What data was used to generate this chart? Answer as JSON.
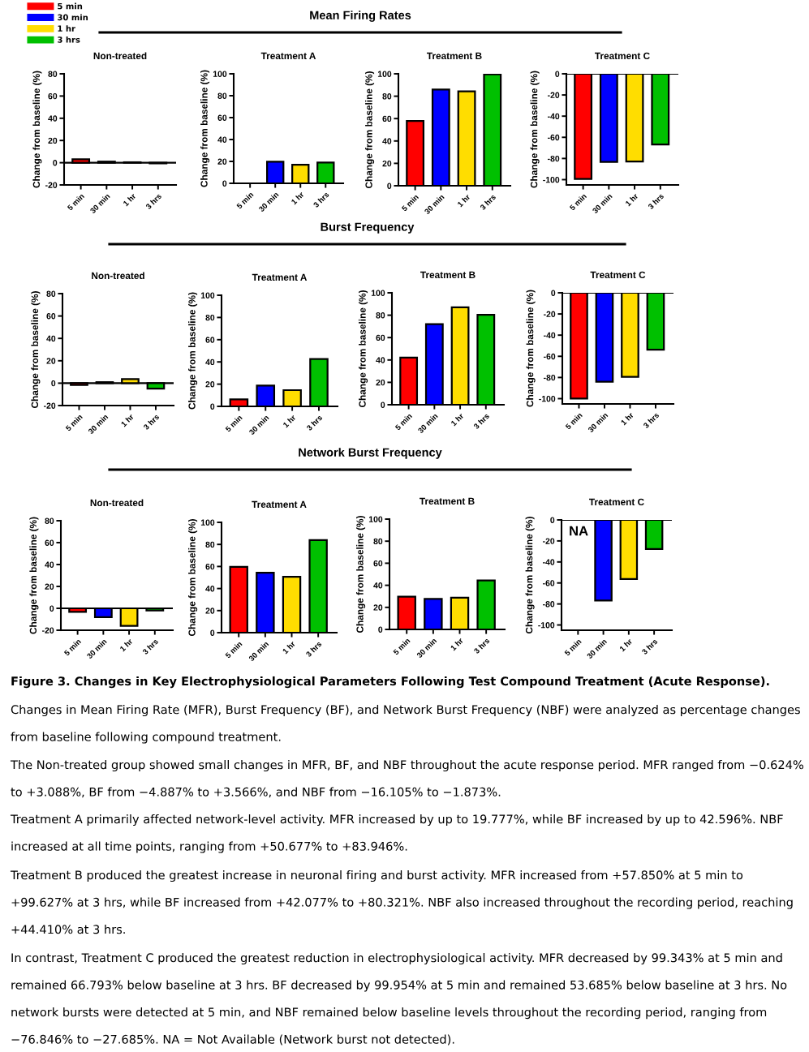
{
  "chart_data": [
    {
      "type": "other",
      "title": "Mean Firing Rates"
    },
    {
      "type": "bar",
      "title": "Non-treated",
      "ylabel": "Change from baseline (%)",
      "categories": [
        "5 min",
        "30 min",
        "1 hr",
        "3 hrs"
      ],
      "series": [
        {
          "name": "5 min",
          "color": "#ff0000",
          "values": [
            3.1,
            null,
            null,
            null
          ]
        },
        {
          "name": "30 min",
          "color": "#0000ff",
          "values": [
            null,
            1.0,
            null,
            null
          ]
        },
        {
          "name": "1 hr",
          "color": "#ffdd00",
          "values": [
            null,
            null,
            0.4,
            null
          ]
        },
        {
          "name": "3 hrs",
          "color": "#00c000",
          "values": [
            null,
            null,
            null,
            -0.6
          ]
        }
      ],
      "ylim": [
        -20,
        80
      ],
      "yticks": [
        -20,
        0,
        20,
        40,
        60,
        80
      ],
      "ref_lines": [
        {
          "axis": "y",
          "value": 0,
          "color": "#000000"
        }
      ],
      "legend": "top left"
    },
    {
      "type": "bar",
      "title": "Treatment A",
      "ylabel": "Change from baseline (%)",
      "categories": [
        "5 min",
        "30 min",
        "1 hr",
        "3 hrs"
      ],
      "colors": [
        "#ff0000",
        "#0000ff",
        "#ffdd00",
        "#00c000"
      ],
      "values": [
        null,
        19.8,
        17.0,
        19.0
      ],
      "ylim": [
        0,
        100
      ],
      "yticks": [
        0,
        20,
        40,
        60,
        80,
        100
      ]
    },
    {
      "type": "bar",
      "title": "Treatment B",
      "ylabel": "Change from baseline (%)",
      "categories": [
        "5 min",
        "30 min",
        "1 hr",
        "3 hrs"
      ],
      "colors": [
        "#ff0000",
        "#0000ff",
        "#ffdd00",
        "#00c000"
      ],
      "values": [
        57.9,
        86.0,
        84.3,
        99.6
      ],
      "ylim": [
        0,
        100
      ],
      "yticks": [
        0,
        20,
        40,
        60,
        80,
        100
      ]
    },
    {
      "type": "bar",
      "title": "Treatment C",
      "ylabel": "Change from baseline (%)",
      "categories": [
        "5 min",
        "30 min",
        "1 hr",
        "3 hrs"
      ],
      "colors": [
        "#ff0000",
        "#0000ff",
        "#ffdd00",
        "#00c000"
      ],
      "values": [
        -99.3,
        -83.2,
        -82.9,
        -66.8
      ],
      "ylim": [
        -105,
        0
      ],
      "yticks": [
        -100,
        -80,
        -60,
        -40,
        -20,
        0
      ],
      "ref_lines": [
        {
          "axis": "y",
          "value": 0,
          "color": "#000000"
        }
      ]
    },
    {
      "type": "other",
      "title": "Burst Frequency"
    },
    {
      "type": "bar",
      "title": "Non-treated",
      "ylabel": "Change from baseline (%)",
      "categories": [
        "5 min",
        "30 min",
        "1 hr",
        "3 hrs"
      ],
      "colors": [
        "#ff0000",
        "#0000ff",
        "#ffdd00",
        "#00c000"
      ],
      "values": [
        -1.7,
        0.9,
        3.6,
        -4.9
      ],
      "ylim": [
        -20,
        80
      ],
      "yticks": [
        -20,
        0,
        20,
        40,
        60,
        80
      ],
      "ref_lines": [
        {
          "axis": "y",
          "value": 0,
          "color": "#000000"
        }
      ]
    },
    {
      "type": "bar",
      "title": "Treatment A",
      "ylabel": "Change from baseline (%)",
      "categories": [
        "5 min",
        "30 min",
        "1 hr",
        "3 hrs"
      ],
      "colors": [
        "#ff0000",
        "#0000ff",
        "#ffdd00",
        "#00c000"
      ],
      "values": [
        6.3,
        18.7,
        14.6,
        42.6
      ],
      "ylim": [
        0,
        100
      ],
      "yticks": [
        0,
        20,
        40,
        60,
        80,
        100
      ]
    },
    {
      "type": "bar",
      "title": "Treatment B",
      "ylabel": "Change from baseline (%)",
      "categories": [
        "5 min",
        "30 min",
        "1 hr",
        "3 hrs"
      ],
      "colors": [
        "#ff0000",
        "#0000ff",
        "#ffdd00",
        "#00c000"
      ],
      "values": [
        42.1,
        72.0,
        87.0,
        80.3
      ],
      "ylim": [
        0,
        100
      ],
      "yticks": [
        0,
        20,
        40,
        60,
        80,
        100
      ]
    },
    {
      "type": "bar",
      "title": "Treatment C",
      "ylabel": "Change from baseline (%)",
      "categories": [
        "5 min",
        "30 min",
        "1 hr",
        "3 hrs"
      ],
      "colors": [
        "#ff0000",
        "#0000ff",
        "#ffdd00",
        "#00c000"
      ],
      "values": [
        -100.0,
        -84.0,
        -79.4,
        -53.7
      ],
      "ylim": [
        -105,
        0
      ],
      "yticks": [
        -100,
        -80,
        -60,
        -40,
        -20,
        0
      ],
      "ref_lines": [
        {
          "axis": "y",
          "value": 0,
          "color": "#000000"
        }
      ]
    },
    {
      "type": "other",
      "title": "Network Burst Frequency"
    },
    {
      "type": "bar",
      "title": "Non-treated",
      "ylabel": "Change from baseline (%)",
      "categories": [
        "5 min",
        "30 min",
        "1 hr",
        "3 hrs"
      ],
      "colors": [
        "#ff0000",
        "#0000ff",
        "#ffdd00",
        "#00c000"
      ],
      "values": [
        -3.2,
        -8.0,
        -16.1,
        -1.9
      ],
      "ylim": [
        -20,
        80
      ],
      "yticks": [
        -20,
        0,
        20,
        40,
        60,
        80
      ],
      "ref_lines": [
        {
          "axis": "y",
          "value": 0,
          "color": "#000000"
        }
      ]
    },
    {
      "type": "bar",
      "title": "Treatment A",
      "ylabel": "Change from baseline (%)",
      "categories": [
        "5 min",
        "30 min",
        "1 hr",
        "3 hrs"
      ],
      "colors": [
        "#ff0000",
        "#0000ff",
        "#ffdd00",
        "#00c000"
      ],
      "values": [
        59.7,
        54.3,
        50.7,
        83.9
      ],
      "ylim": [
        0,
        100
      ],
      "yticks": [
        0,
        20,
        40,
        60,
        80,
        100
      ]
    },
    {
      "type": "bar",
      "title": "Treatment B",
      "ylabel": "Change from baseline (%)",
      "categories": [
        "5 min",
        "30 min",
        "1 hr",
        "3 hrs"
      ],
      "colors": [
        "#ff0000",
        "#0000ff",
        "#ffdd00",
        "#00c000"
      ],
      "values": [
        29.7,
        27.7,
        28.7,
        44.4
      ],
      "ylim": [
        0,
        100
      ],
      "yticks": [
        0,
        20,
        40,
        60,
        80,
        100
      ]
    },
    {
      "type": "bar",
      "title": "Treatment C",
      "ylabel": "Change from baseline (%)",
      "categories": [
        "5 min",
        "30 min",
        "1 hr",
        "3 hrs"
      ],
      "colors": [
        "#ff0000",
        "#0000ff",
        "#ffdd00",
        "#00c000"
      ],
      "values": [
        null,
        -76.8,
        -56.3,
        -27.7
      ],
      "ylim": [
        -105,
        0
      ],
      "yticks": [
        -100,
        -80,
        -60,
        -40,
        -20,
        0
      ],
      "ref_lines": [
        {
          "axis": "y",
          "value": 0,
          "color": "#000000"
        }
      ],
      "annotations": [
        "NA"
      ]
    },
    {
      "type": "other",
      "title": "Figure 3. Changes in Key Electrophysiological Parameters Following Test Compound Treatment (Acute Response).",
      "annotations": [
        "Changes in Mean Firing Rate (MFR), Burst Frequency (BF), and Network Burst Frequency (NBF) were analyzed as percentage changes from baseline following compound treatment.",
        "The Non-treated group showed small changes in MFR, BF, and NBF throughout the acute response period. MFR ranged from −0.624% to +3.088%, BF from −4.887% to +3.566%, and NBF from −16.105% to −1.873%.",
        "Treatment A primarily affected network-level activity. MFR increased by up to 19.777%, while BF increased by up to 42.596%. NBF increased at all time points, ranging from +50.677% to +83.946%.",
        "Treatment B produced the greatest increase in neuronal firing and burst activity. MFR increased from +57.850% at 5 min to +99.627% at 3 hrs, while BF increased from +42.077% to +80.321%. NBF also increased throughout the recording period, reaching +44.410% at 3 hrs.",
        "In contrast, Treatment C produced the greatest reduction in electrophysiological activity. MFR decreased by 99.343% at 5 min and remained 66.793% below baseline at 3 hrs. BF decreased by 99.954% at 5 min and remained 53.685% below baseline at 3 hrs. No network bursts were detected at 5 min, and NBF remained below baseline levels throughout the recording period, ranging from −76.846% to −27.685%. NA = Not Available (Network burst not detected)."
      ]
    }
  ]
}
